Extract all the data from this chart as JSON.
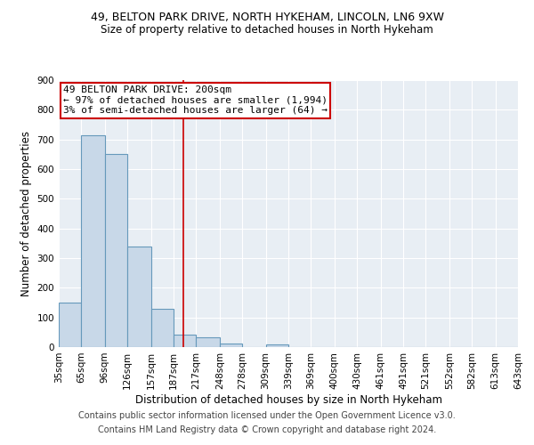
{
  "title_line1": "49, BELTON PARK DRIVE, NORTH HYKEHAM, LINCOLN, LN6 9XW",
  "title_line2": "Size of property relative to detached houses in North Hykeham",
  "xlabel": "Distribution of detached houses by size in North Hykeham",
  "ylabel": "Number of detached properties",
  "bin_edges": [
    35,
    65,
    96,
    126,
    157,
    187,
    217,
    248,
    278,
    309,
    339,
    369,
    400,
    430,
    461,
    491,
    521,
    552,
    582,
    613,
    643
  ],
  "bar_heights": [
    150,
    715,
    650,
    340,
    130,
    43,
    33,
    12,
    0,
    10,
    0,
    0,
    0,
    0,
    0,
    0,
    0,
    0,
    0,
    0
  ],
  "bar_color": "#c8d8e8",
  "bar_edgecolor": "#6699bb",
  "property_line_x": 200,
  "property_line_color": "#cc0000",
  "annotation_text": "49 BELTON PARK DRIVE: 200sqm\n← 97% of detached houses are smaller (1,994)\n3% of semi-detached houses are larger (64) →",
  "annotation_box_color": "#cc0000",
  "ylim": [
    0,
    900
  ],
  "yticks": [
    0,
    100,
    200,
    300,
    400,
    500,
    600,
    700,
    800,
    900
  ],
  "xtick_labels": [
    "35sqm",
    "65sqm",
    "96sqm",
    "126sqm",
    "157sqm",
    "187sqm",
    "217sqm",
    "248sqm",
    "278sqm",
    "309sqm",
    "339sqm",
    "369sqm",
    "400sqm",
    "430sqm",
    "461sqm",
    "491sqm",
    "521sqm",
    "552sqm",
    "582sqm",
    "613sqm",
    "643sqm"
  ],
  "footer_line1": "Contains HM Land Registry data © Crown copyright and database right 2024.",
  "footer_line2": "Contains public sector information licensed under the Open Government Licence v3.0.",
  "plot_bg_color": "#e8eef4",
  "fig_bg_color": "#ffffff",
  "grid_color": "#ffffff",
  "title_fontsize": 9,
  "subtitle_fontsize": 8.5,
  "axis_label_fontsize": 8.5,
  "tick_fontsize": 7.5,
  "annotation_fontsize": 8,
  "footer_fontsize": 7
}
